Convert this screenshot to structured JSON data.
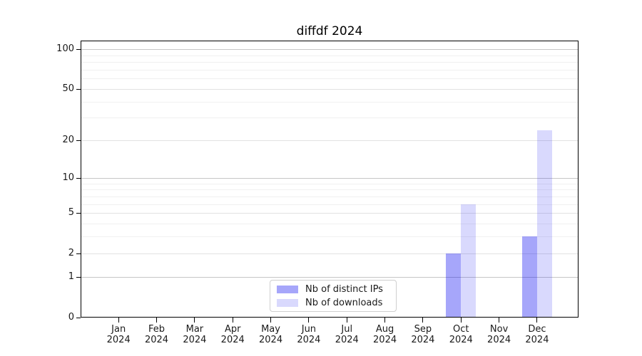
{
  "chart_data": {
    "type": "bar",
    "title": "diffdf 2024",
    "xlabel": "",
    "ylabel": "",
    "categories": [
      "Jan 2024",
      "Feb 2024",
      "Mar 2024",
      "Apr 2024",
      "May 2024",
      "Jun 2024",
      "Jul 2024",
      "Aug 2024",
      "Sep 2024",
      "Oct 2024",
      "Nov 2024",
      "Dec 2024"
    ],
    "series": [
      {
        "name": "Nb of distinct IPs",
        "color": "rgba(0,0,240,0.35)",
        "values": [
          0,
          0,
          0,
          0,
          0,
          0,
          0,
          0,
          0,
          2,
          0,
          3
        ]
      },
      {
        "name": "Nb of downloads",
        "color": "rgba(0,0,240,0.15)",
        "values": [
          0,
          0,
          0,
          0,
          0,
          0,
          0,
          0,
          0,
          6,
          0,
          24
        ]
      }
    ],
    "yscale": "log1p",
    "ylim": [
      0,
      116
    ],
    "yticks": [
      0,
      1,
      2,
      5,
      10,
      20,
      50,
      100
    ],
    "grid": {
      "major": [
        1,
        10,
        100
      ],
      "mid": [
        2,
        5,
        20,
        50
      ],
      "minor": [
        3,
        4,
        6,
        7,
        8,
        9,
        30,
        40,
        60,
        70,
        80,
        90
      ]
    },
    "legend_position": "bottom-center",
    "grid_on": true
  }
}
